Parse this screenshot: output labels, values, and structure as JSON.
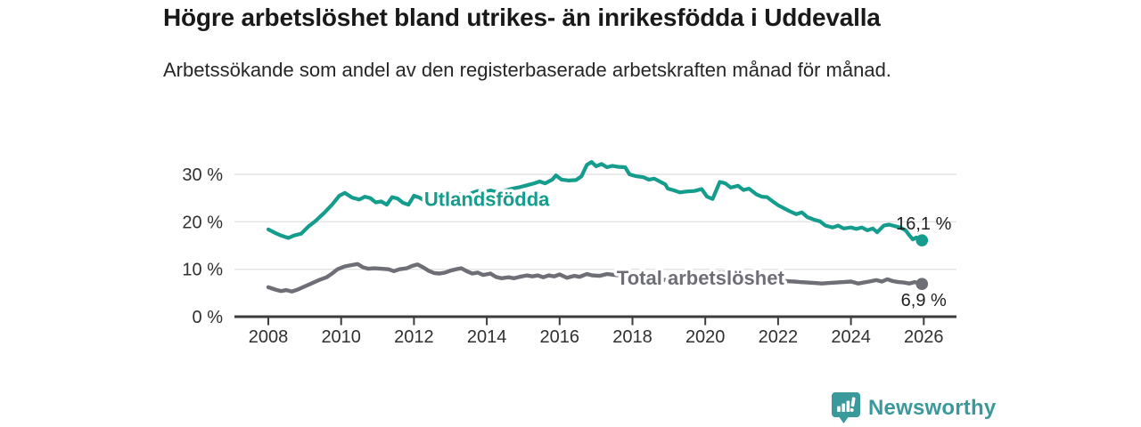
{
  "header": {
    "title": "Högre arbetslöshet bland utrikes- än inrikesfödda i Uddevalla",
    "subtitle": "Arbetssökande som andel av den registerbaserade arbetskraften månad för månad."
  },
  "footer": {
    "brand": "Newsworthy",
    "brand_color": "#3a9a9b",
    "logo_icon": "bar-chart-speech-bubble-icon"
  },
  "colors": {
    "accent_teal": "#149c8c",
    "series_gray": "#6e6e77",
    "gridline": "#e3e3e3",
    "axis": "#3c3c3c",
    "tick_label": "#303030",
    "value_label": "#1f1f1f"
  },
  "chart_data": {
    "type": "line",
    "title": "Högre arbetslöshet bland utrikes- än inrikesfödda i Uddevalla",
    "xlabel": "",
    "ylabel": "",
    "grid": true,
    "x_domain": [
      2007.1,
      2026.9
    ],
    "y_domain": [
      0,
      33.5
    ],
    "x_ticks": [
      {
        "v": 2008,
        "label": "2008"
      },
      {
        "v": 2010,
        "label": "2010"
      },
      {
        "v": 2012,
        "label": "2012"
      },
      {
        "v": 2014,
        "label": "2014"
      },
      {
        "v": 2016,
        "label": "2016"
      },
      {
        "v": 2018,
        "label": "2018"
      },
      {
        "v": 2020,
        "label": "2020"
      },
      {
        "v": 2022,
        "label": "2022"
      },
      {
        "v": 2024,
        "label": "2024"
      },
      {
        "v": 2026,
        "label": "2026"
      }
    ],
    "y_ticks": [
      {
        "v": 0,
        "label": "0 %"
      },
      {
        "v": 10,
        "label": "10 %"
      },
      {
        "v": 20,
        "label": "20 %"
      },
      {
        "v": 30,
        "label": "30 %"
      }
    ],
    "series": [
      {
        "name": "Utlandsfödda",
        "color": "#149c8c",
        "line_width": 4.2,
        "end_value": 16.1,
        "end_label": "16,1 %",
        "end_label_position": "above",
        "inline_label": {
          "text": "Utlandsfödda",
          "t": 2012.28,
          "v": 23.3
        },
        "points": [
          [
            2008.0,
            18.4
          ],
          [
            2008.2,
            17.6
          ],
          [
            2008.35,
            17.1
          ],
          [
            2008.55,
            16.6
          ],
          [
            2008.7,
            17.1
          ],
          [
            2008.9,
            17.5
          ],
          [
            2009.1,
            19.0
          ],
          [
            2009.3,
            20.2
          ],
          [
            2009.55,
            22.0
          ],
          [
            2009.75,
            23.6
          ],
          [
            2009.95,
            25.5
          ],
          [
            2010.1,
            26.1
          ],
          [
            2010.3,
            25.1
          ],
          [
            2010.5,
            24.7
          ],
          [
            2010.65,
            25.3
          ],
          [
            2010.8,
            25.0
          ],
          [
            2010.95,
            24.1
          ],
          [
            2011.1,
            24.3
          ],
          [
            2011.25,
            23.6
          ],
          [
            2011.4,
            25.2
          ],
          [
            2011.55,
            24.9
          ],
          [
            2011.7,
            24.0
          ],
          [
            2011.85,
            23.6
          ],
          [
            2012.0,
            25.5
          ],
          [
            2012.15,
            25.1
          ],
          [
            2012.3,
            24.4
          ],
          [
            2012.45,
            24.9
          ],
          [
            2012.6,
            26.0
          ],
          [
            2012.75,
            25.3
          ],
          [
            2012.9,
            25.7
          ],
          [
            2013.1,
            25.3
          ],
          [
            2013.25,
            25.8
          ],
          [
            2013.45,
            25.4
          ],
          [
            2013.6,
            26.1
          ],
          [
            2013.75,
            26.5
          ],
          [
            2013.9,
            26.2
          ],
          [
            2014.1,
            26.6
          ],
          [
            2014.3,
            26.2
          ],
          [
            2014.5,
            26.6
          ],
          [
            2014.7,
            27.0
          ],
          [
            2014.9,
            27.3
          ],
          [
            2015.1,
            27.7
          ],
          [
            2015.3,
            28.1
          ],
          [
            2015.45,
            28.5
          ],
          [
            2015.6,
            28.1
          ],
          [
            2015.8,
            28.9
          ],
          [
            2015.9,
            29.8
          ],
          [
            2016.05,
            28.9
          ],
          [
            2016.25,
            28.7
          ],
          [
            2016.45,
            28.8
          ],
          [
            2016.6,
            29.6
          ],
          [
            2016.75,
            32.0
          ],
          [
            2016.88,
            32.6
          ],
          [
            2017.0,
            31.7
          ],
          [
            2017.15,
            32.2
          ],
          [
            2017.3,
            31.5
          ],
          [
            2017.45,
            31.8
          ],
          [
            2017.6,
            31.6
          ],
          [
            2017.8,
            31.5
          ],
          [
            2017.92,
            30.0
          ],
          [
            2018.1,
            29.6
          ],
          [
            2018.3,
            29.4
          ],
          [
            2018.45,
            28.9
          ],
          [
            2018.6,
            29.1
          ],
          [
            2018.75,
            28.5
          ],
          [
            2018.9,
            27.9
          ],
          [
            2018.97,
            27.0
          ],
          [
            2019.15,
            26.6
          ],
          [
            2019.3,
            26.2
          ],
          [
            2019.5,
            26.4
          ],
          [
            2019.7,
            26.5
          ],
          [
            2019.9,
            26.9
          ],
          [
            2020.05,
            25.3
          ],
          [
            2020.2,
            24.8
          ],
          [
            2020.4,
            28.4
          ],
          [
            2020.55,
            28.1
          ],
          [
            2020.7,
            27.2
          ],
          [
            2020.9,
            27.6
          ],
          [
            2021.05,
            26.7
          ],
          [
            2021.2,
            27.0
          ],
          [
            2021.4,
            25.8
          ],
          [
            2021.55,
            25.3
          ],
          [
            2021.7,
            25.2
          ],
          [
            2021.85,
            24.3
          ],
          [
            2022.0,
            23.5
          ],
          [
            2022.15,
            22.9
          ],
          [
            2022.3,
            22.3
          ],
          [
            2022.5,
            21.6
          ],
          [
            2022.65,
            22.0
          ],
          [
            2022.8,
            21.0
          ],
          [
            2023.0,
            20.4
          ],
          [
            2023.15,
            20.1
          ],
          [
            2023.3,
            19.2
          ],
          [
            2023.5,
            18.8
          ],
          [
            2023.65,
            19.2
          ],
          [
            2023.8,
            18.6
          ],
          [
            2024.0,
            18.8
          ],
          [
            2024.15,
            18.5
          ],
          [
            2024.3,
            18.8
          ],
          [
            2024.45,
            18.2
          ],
          [
            2024.6,
            18.6
          ],
          [
            2024.72,
            17.8
          ],
          [
            2024.9,
            19.2
          ],
          [
            2025.05,
            19.4
          ],
          [
            2025.2,
            19.1
          ],
          [
            2025.35,
            18.8
          ],
          [
            2025.5,
            18.2
          ],
          [
            2025.6,
            17.2
          ],
          [
            2025.7,
            16.3
          ],
          [
            2025.8,
            16.7
          ],
          [
            2025.88,
            15.9
          ],
          [
            2025.95,
            16.1
          ]
        ]
      },
      {
        "name": "Total arbetslöshet",
        "color": "#6e6e77",
        "line_width": 4.4,
        "end_value": 6.9,
        "end_label": "6,9 %",
        "end_label_position": "below",
        "inline_label": {
          "text": "Total arbetslöshet",
          "t": 2017.57,
          "v": 6.75
        },
        "points": [
          [
            2008.0,
            6.2
          ],
          [
            2008.2,
            5.7
          ],
          [
            2008.35,
            5.4
          ],
          [
            2008.5,
            5.6
          ],
          [
            2008.65,
            5.3
          ],
          [
            2008.8,
            5.7
          ],
          [
            2008.95,
            6.2
          ],
          [
            2009.15,
            6.9
          ],
          [
            2009.3,
            7.4
          ],
          [
            2009.45,
            7.9
          ],
          [
            2009.6,
            8.3
          ],
          [
            2009.75,
            9.1
          ],
          [
            2009.9,
            10.0
          ],
          [
            2010.1,
            10.6
          ],
          [
            2010.3,
            10.9
          ],
          [
            2010.45,
            11.1
          ],
          [
            2010.6,
            10.4
          ],
          [
            2010.75,
            10.1
          ],
          [
            2010.9,
            10.2
          ],
          [
            2011.1,
            10.1
          ],
          [
            2011.3,
            10.0
          ],
          [
            2011.45,
            9.6
          ],
          [
            2011.6,
            10.0
          ],
          [
            2011.8,
            10.2
          ],
          [
            2011.95,
            10.7
          ],
          [
            2012.1,
            11.0
          ],
          [
            2012.25,
            10.4
          ],
          [
            2012.4,
            9.7
          ],
          [
            2012.55,
            9.2
          ],
          [
            2012.7,
            9.1
          ],
          [
            2012.85,
            9.3
          ],
          [
            2013.0,
            9.7
          ],
          [
            2013.15,
            10.0
          ],
          [
            2013.3,
            10.2
          ],
          [
            2013.45,
            9.6
          ],
          [
            2013.6,
            9.1
          ],
          [
            2013.75,
            9.3
          ],
          [
            2013.9,
            8.8
          ],
          [
            2014.1,
            9.1
          ],
          [
            2014.25,
            8.4
          ],
          [
            2014.4,
            8.1
          ],
          [
            2014.6,
            8.3
          ],
          [
            2014.75,
            8.1
          ],
          [
            2014.9,
            8.4
          ],
          [
            2015.1,
            8.7
          ],
          [
            2015.25,
            8.5
          ],
          [
            2015.4,
            8.7
          ],
          [
            2015.55,
            8.3
          ],
          [
            2015.7,
            8.7
          ],
          [
            2015.85,
            8.5
          ],
          [
            2016.0,
            8.9
          ],
          [
            2016.2,
            8.2
          ],
          [
            2016.4,
            8.6
          ],
          [
            2016.55,
            8.4
          ],
          [
            2016.75,
            9.0
          ],
          [
            2016.9,
            8.7
          ],
          [
            2017.1,
            8.6
          ],
          [
            2017.3,
            9.0
          ],
          [
            2017.5,
            8.8
          ],
          [
            2017.8,
            8.6
          ],
          [
            2018.1,
            8.4
          ],
          [
            2018.4,
            8.1
          ],
          [
            2018.7,
            7.9
          ],
          [
            2019.0,
            7.7
          ],
          [
            2019.3,
            7.6
          ],
          [
            2019.6,
            7.7
          ],
          [
            2019.9,
            8.0
          ],
          [
            2020.2,
            8.7
          ],
          [
            2020.4,
            9.3
          ],
          [
            2020.7,
            9.1
          ],
          [
            2021.0,
            8.7
          ],
          [
            2021.3,
            8.3
          ],
          [
            2021.6,
            7.9
          ],
          [
            2021.9,
            7.6
          ],
          [
            2022.2,
            7.5
          ],
          [
            2022.45,
            7.4
          ],
          [
            2022.6,
            7.3
          ],
          [
            2022.8,
            7.2
          ],
          [
            2023.0,
            7.1
          ],
          [
            2023.2,
            7.0
          ],
          [
            2023.4,
            7.1
          ],
          [
            2023.6,
            7.2
          ],
          [
            2023.8,
            7.3
          ],
          [
            2024.0,
            7.4
          ],
          [
            2024.2,
            7.0
          ],
          [
            2024.35,
            7.2
          ],
          [
            2024.5,
            7.4
          ],
          [
            2024.7,
            7.7
          ],
          [
            2024.85,
            7.4
          ],
          [
            2025.0,
            7.9
          ],
          [
            2025.15,
            7.5
          ],
          [
            2025.3,
            7.3
          ],
          [
            2025.45,
            7.2
          ],
          [
            2025.6,
            7.0
          ],
          [
            2025.75,
            7.3
          ],
          [
            2025.95,
            6.9
          ]
        ]
      }
    ]
  }
}
